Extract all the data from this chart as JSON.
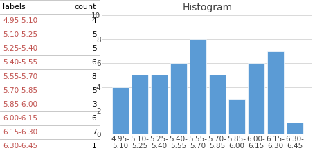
{
  "labels": [
    "4.95-\n5.10",
    "5.10-\n5.25",
    "5.25-\n5.40",
    "5.40-\n5.55",
    "5.55-\n5.70",
    "5.70-\n5.85",
    "5.85-\n6.00",
    "6.00-\n6.15",
    "6.15-\n6.30",
    "6.30-\n6.45"
  ],
  "counts": [
    4,
    5,
    5,
    6,
    8,
    5,
    3,
    6,
    7,
    1
  ],
  "bar_color": "#5B9BD5",
  "bar_edge_color": "#ffffff",
  "title": "Histogram",
  "title_fontsize": 10,
  "title_color": "#404040",
  "ylim": [
    0,
    10
  ],
  "yticks": [
    0,
    2,
    4,
    6,
    8,
    10
  ],
  "tick_fontsize": 7.5,
  "grid_color": "#d9d9d9",
  "table_headers": [
    "labels",
    "count"
  ],
  "table_labels": [
    "4.95-5.10",
    "5.10-5.25",
    "5.25-5.40",
    "5.40-5.55",
    "5.55-5.70",
    "5.70-5.85",
    "5.85-6.00",
    "6.00-6.15",
    "6.15-6.30",
    "6.30-6.45"
  ],
  "table_counts": [
    4,
    5,
    5,
    6,
    8,
    5,
    3,
    6,
    7,
    1
  ],
  "table_bg_color": "#ffffff",
  "table_label_color": "#c0504d",
  "table_count_color": "#000000",
  "table_header_color": "#000000",
  "table_border_color": "#bfbfbf",
  "table_header_bg": "#ffffff"
}
